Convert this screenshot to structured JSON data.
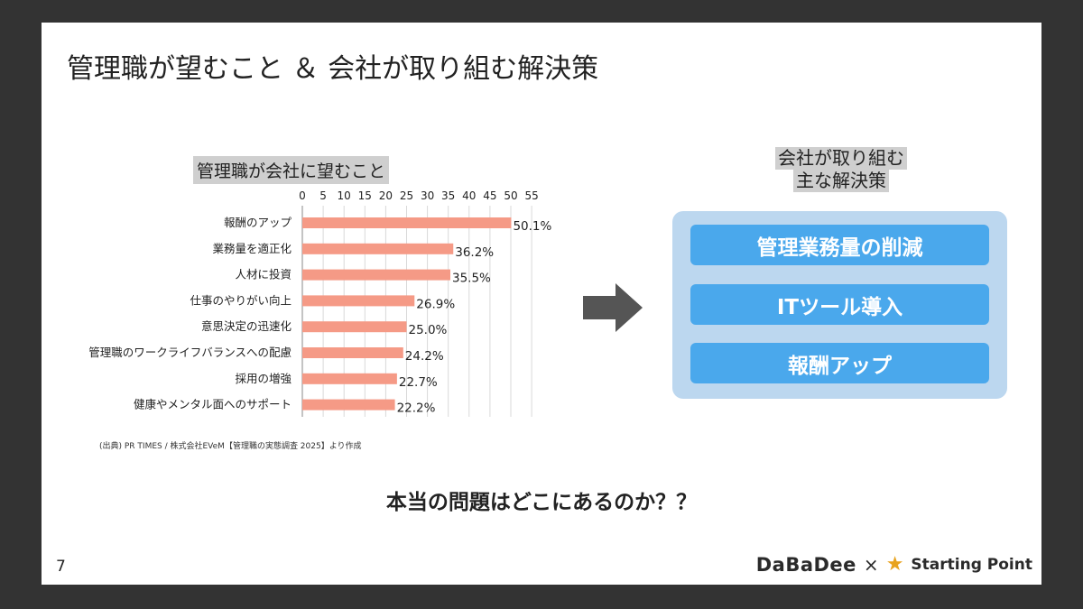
{
  "slide": {
    "title": "管理職が望むこと ＆ 会社が取り組む解決策",
    "page_number": "7",
    "question": "本当の問題はどこにあるのか？？"
  },
  "chart_section": {
    "title": "管理職が会社に望むこと",
    "source": "(出典) PR TIMES / 株式会社EVeM【管理職の実態調査 2025】より作成"
  },
  "chart_data": {
    "type": "bar",
    "orientation": "horizontal",
    "title": "管理職が会社に望むこと",
    "categories": [
      "報酬のアップ",
      "業務量を適正化",
      "人材に投資",
      "仕事のやりがい向上",
      "意思決定の迅速化",
      "管理職のワークライフバランスへの配慮",
      "採用の増強",
      "健康やメンタル面へのサポート"
    ],
    "values": [
      50.1,
      36.2,
      35.5,
      26.9,
      25.0,
      24.2,
      22.7,
      22.2
    ],
    "value_labels": [
      "50.1%",
      "36.2%",
      "35.5%",
      "26.9%",
      "25.0%",
      "24.2%",
      "22.7%",
      "22.2%"
    ],
    "x_ticks": [
      0,
      5,
      10,
      15,
      20,
      25,
      30,
      35,
      40,
      45,
      50,
      55
    ],
    "xlim": [
      0,
      55
    ],
    "x_axis_position": "top",
    "grid": true,
    "bar_color": "#f59a86"
  },
  "solutions": {
    "heading_line1": "会社が取り組む",
    "heading_line2": "主な解決策",
    "items": [
      "管理業務量の削減",
      "ITツール導入",
      "報酬アップ"
    ]
  },
  "footer": {
    "logo1": "DaBaDee",
    "separator": "×",
    "logo2": "Starting Point"
  },
  "colors": {
    "background": "#333333",
    "slide": "#ffffff",
    "highlight": "#cfcfcf",
    "panel": "#bcd7ef",
    "accent": "#4aa8ec",
    "bar": "#f59a86",
    "star": "#e8a31e"
  }
}
